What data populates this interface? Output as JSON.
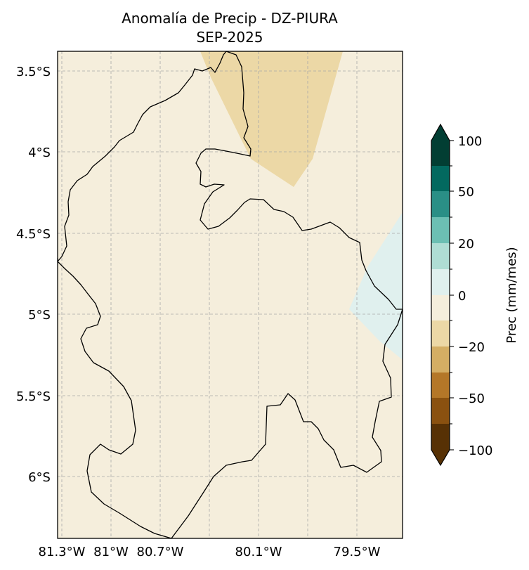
{
  "title": {
    "line1": "Anomalía de Precip - DZ-PIURA",
    "line2": "SEP-2025"
  },
  "map": {
    "lat_ticks": [
      "3.5°S",
      "4°S",
      "4.5°S",
      "5°S",
      "5.5°S",
      "6°S"
    ],
    "lon_ticks": [
      "81.3°W",
      "81°W",
      "80.7°W",
      "80.1°W",
      "79.5°W"
    ],
    "lon_range": [
      -81.32,
      -79.22
    ],
    "lat_range": [
      -6.38,
      -3.38
    ],
    "grid": true
  },
  "colorbar": {
    "label": "Prec (mm/mes)",
    "ticks": [
      "100",
      "50",
      "20",
      "0",
      "−20",
      "−50",
      "−100"
    ],
    "levels_top_to_bottom": [
      100,
      75,
      50,
      35,
      20,
      10,
      0,
      -10,
      -20,
      -35,
      -50,
      -75,
      -100
    ],
    "colors_top_to_bottom": [
      "#023e33",
      "#03695f",
      "#2a8f86",
      "#6cbfb3",
      "#afddd4",
      "#e0f0ee",
      "#f5eedc",
      "#ecd8a6",
      "#d4ae64",
      "#b47728",
      "#8a5110",
      "#573105"
    ],
    "extend": "both"
  },
  "field": {
    "background": "#f5eedc",
    "dry_anomaly_color": "#ecd8a6",
    "wet_anomaly_color": "#e0f0ee"
  }
}
